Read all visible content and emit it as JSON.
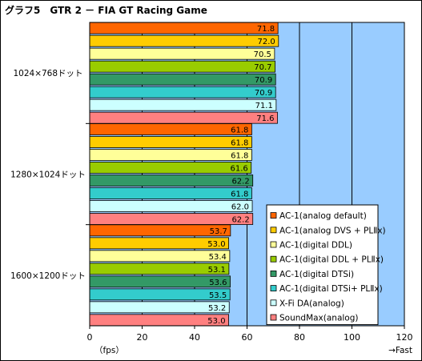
{
  "chart_data": {
    "type": "bar",
    "orientation": "horizontal",
    "title": "グラフ5　GTR 2 － FIA GT Racing Game",
    "categories": [
      "1024×768ドット",
      "1280×1024ドット",
      "1600×1200ドット"
    ],
    "series": [
      {
        "name": "AC-1(analog default)",
        "color": "#ff6600",
        "values": [
          71.8,
          61.8,
          53.7
        ]
      },
      {
        "name": "AC-1(analog DVS + PLⅡx)",
        "color": "#ffcc00",
        "values": [
          72.0,
          61.8,
          53.0
        ]
      },
      {
        "name": "AC-1(digital DDL)",
        "color": "#ffff99",
        "values": [
          70.5,
          61.8,
          53.4
        ]
      },
      {
        "name": "AC-1(digital DDL + PLⅡx)",
        "color": "#99cc00",
        "values": [
          70.7,
          61.6,
          53.1
        ]
      },
      {
        "name": "AC-1(digital DTSi)",
        "color": "#339966",
        "values": [
          70.9,
          62.2,
          53.6
        ]
      },
      {
        "name": "AC-1(digital DTSi+ PLⅡx)",
        "color": "#33cccc",
        "values": [
          70.9,
          61.8,
          53.5
        ]
      },
      {
        "name": "X-Fi DA(analog)",
        "color": "#ccffff",
        "values": [
          71.1,
          62.0,
          53.2
        ]
      },
      {
        "name": "SoundMax(analog)",
        "color": "#ff8080",
        "values": [
          71.6,
          62.2,
          53.0
        ]
      }
    ],
    "xlim": [
      0,
      120
    ],
    "xticks": [
      0,
      20,
      40,
      60,
      80,
      100,
      120
    ],
    "xlabel_left": "（fps）",
    "xlabel_right": "→Fast",
    "plot_background": "#99ccff",
    "grid": true,
    "legend": "bottom-right"
  }
}
